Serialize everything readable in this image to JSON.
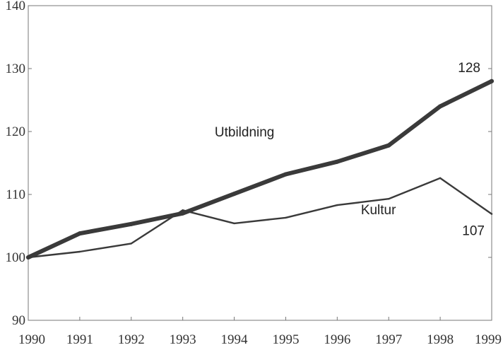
{
  "chart_data": {
    "type": "line",
    "title": "",
    "xlabel": "",
    "ylabel": "",
    "x": [
      1990,
      1991,
      1992,
      1993,
      1994,
      1995,
      1996,
      1997,
      1998,
      1999
    ],
    "x_tick_labels": [
      "1990",
      "1991",
      "1992",
      "1993",
      "1994",
      "1995",
      "1996",
      "1997",
      "1998",
      "1999"
    ],
    "ylim": [
      90,
      140
    ],
    "y_ticks": [
      90,
      100,
      110,
      120,
      130,
      140
    ],
    "y_tick_labels": [
      "90",
      "100",
      "110",
      "120",
      "130",
      "140"
    ],
    "grid": false,
    "series": [
      {
        "name": "Utbildning",
        "values": [
          100,
          103.8,
          105.3,
          107.0,
          110.1,
          113.2,
          115.2,
          117.8,
          124.0,
          128.0
        ],
        "end_label": "128",
        "color": "#3a3a3a",
        "emphasis": "thick"
      },
      {
        "name": "Kultur",
        "values": [
          100,
          100.9,
          102.2,
          107.5,
          105.4,
          106.3,
          108.3,
          109.3,
          112.6,
          106.9
        ],
        "end_label": "107",
        "color": "#3a3a3a",
        "emphasis": "thin"
      }
    ]
  }
}
